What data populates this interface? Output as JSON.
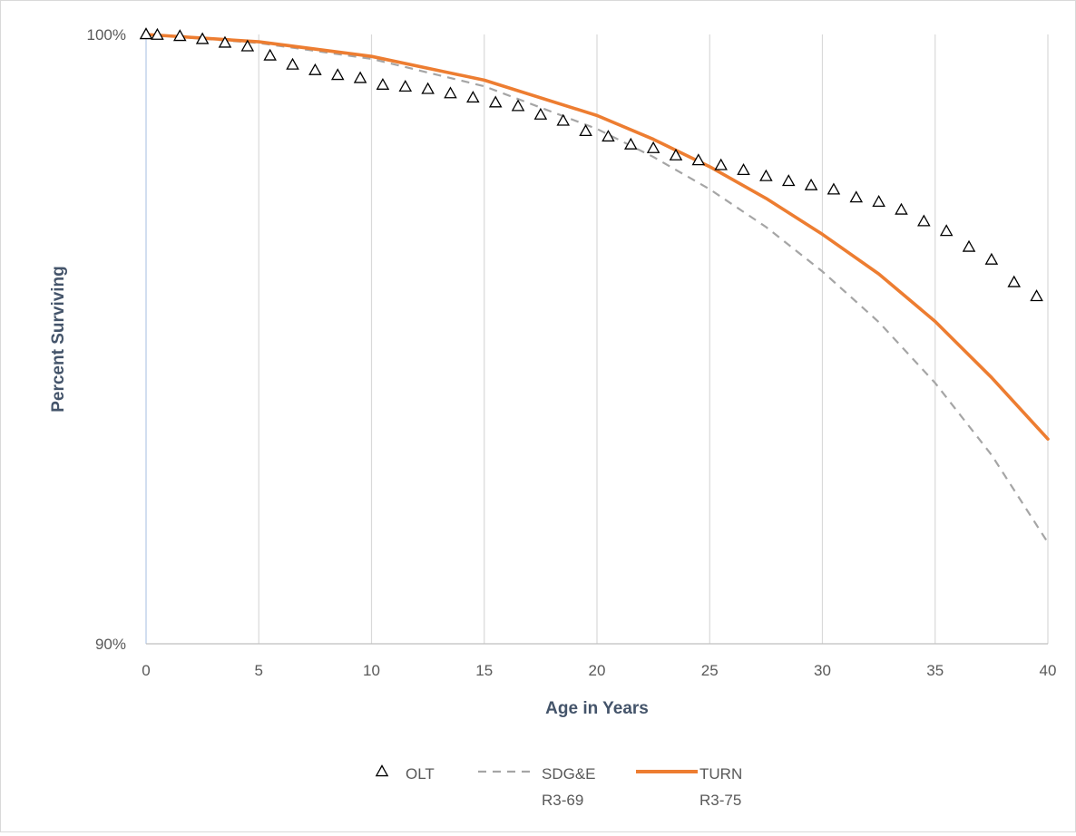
{
  "chart_data": {
    "type": "scatter",
    "title": "",
    "xlabel": "Age in Years",
    "ylabel": "Percent Surviving",
    "xlim": [
      0,
      40
    ],
    "ylim": [
      90,
      100
    ],
    "x_ticks": [
      0,
      5,
      10,
      15,
      20,
      25,
      30,
      35,
      40
    ],
    "x_tick_labels": [
      "0",
      "5",
      "10",
      "15",
      "20",
      "25",
      "30",
      "35",
      "40"
    ],
    "y_tick_labels": [
      {
        "value": 100,
        "label": "100%"
      },
      {
        "value": 90,
        "label": "90%"
      }
    ],
    "vertical_gridlines": true,
    "horizontal_gridlines": false,
    "legend_position": "bottom",
    "series": [
      {
        "name": "OLT",
        "kind": "markers",
        "marker": "triangle-open",
        "color": "#000000",
        "x": [
          0,
          0.5,
          1.5,
          2.5,
          3.5,
          4.5,
          5.5,
          6.5,
          7.5,
          8.5,
          9.5,
          10.5,
          11.5,
          12.5,
          13.5,
          14.5,
          15.5,
          16.5,
          17.5,
          18.5,
          19.5,
          20.5,
          21.5,
          22.5,
          23.5,
          24.5,
          25.5,
          26.5,
          27.5,
          28.5,
          29.5,
          30.5,
          31.5,
          32.5,
          33.5,
          34.5,
          35.5,
          36.5,
          37.5,
          38.5,
          39.5
        ],
        "y": [
          100,
          99.99,
          99.97,
          99.92,
          99.86,
          99.8,
          99.65,
          99.5,
          99.41,
          99.33,
          99.28,
          99.17,
          99.14,
          99.1,
          99.03,
          98.96,
          98.88,
          98.82,
          98.68,
          98.58,
          98.41,
          98.32,
          98.19,
          98.13,
          98.01,
          97.93,
          97.85,
          97.77,
          97.67,
          97.59,
          97.52,
          97.45,
          97.32,
          97.25,
          97.12,
          96.93,
          96.77,
          96.51,
          96.3,
          95.93,
          95.7
        ]
      },
      {
        "name": "SDG&E\nR3-69",
        "legend_lines": [
          "SDG&E",
          "R3-69"
        ],
        "kind": "line",
        "line_style": "dashed",
        "color": "#a5a5a5",
        "x": [
          0,
          5,
          10,
          15,
          20,
          22.5,
          25,
          27.5,
          30,
          32.5,
          35,
          37.5,
          40
        ],
        "y": [
          100,
          99.86,
          99.6,
          99.15,
          98.45,
          97.99,
          97.46,
          96.84,
          96.11,
          95.28,
          94.28,
          93.1,
          91.66
        ]
      },
      {
        "name": "TURN\nR3-75",
        "legend_lines": [
          "TURN",
          "R3-75"
        ],
        "kind": "line",
        "line_style": "solid",
        "color": "#ed7d31",
        "x": [
          0,
          5,
          10,
          15,
          20,
          22.5,
          25,
          27.5,
          30,
          32.5,
          35,
          37.5,
          40
        ],
        "y": [
          100,
          99.88,
          99.64,
          99.25,
          98.67,
          98.28,
          97.83,
          97.31,
          96.72,
          96.07,
          95.29,
          94.37,
          93.36
        ]
      }
    ]
  }
}
